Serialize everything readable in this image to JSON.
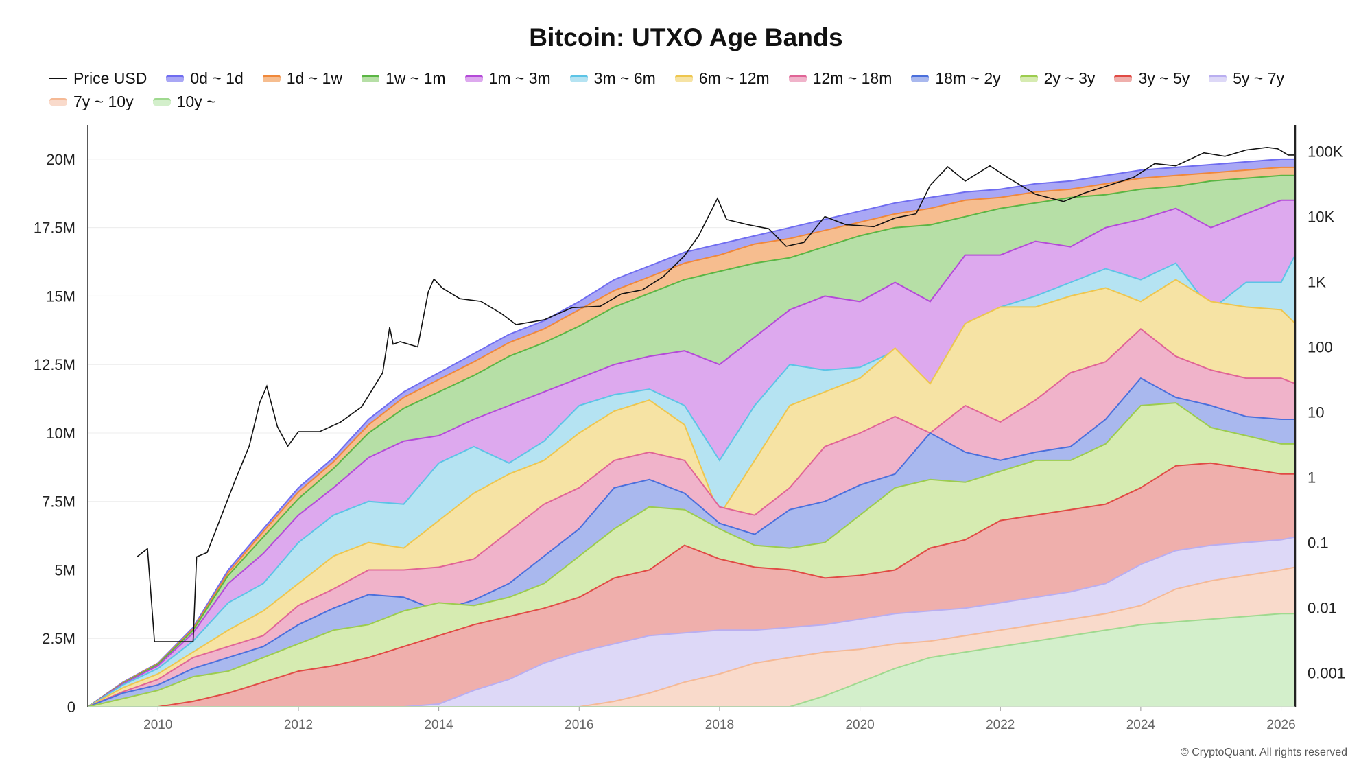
{
  "chart_data": {
    "type": "area",
    "title": "Bitcoin: UTXO Age Bands",
    "watermark": "CryptoQuant",
    "copyright": "© CryptoQuant. All rights reserved",
    "legend_position": "top",
    "grid": true,
    "y_left": {
      "ticks": [
        "0",
        "2.5M",
        "5M",
        "7.5M",
        "10M",
        "12.5M",
        "15M",
        "17.5M",
        "20M"
      ],
      "lim": [
        0,
        21000000
      ]
    },
    "y_right": {
      "scale": "log",
      "ticks": [
        "0.001",
        "0.01",
        "0.1",
        "1",
        "10",
        "100",
        "1K",
        "10K",
        "100K"
      ],
      "lim": [
        0.0003,
        200000
      ]
    },
    "x_ticks": [
      "2010",
      "2012",
      "2014",
      "2016",
      "2018",
      "2020",
      "2022",
      "2024",
      "2026"
    ],
    "x_lim": [
      2009.0,
      2026.2
    ],
    "price_label": "Price USD",
    "bands_legend": [
      {
        "name": "0d ~ 1d",
        "color": "#6f6cf0",
        "fill": "#a9a7f5"
      },
      {
        "name": "1d ~ 1w",
        "color": "#f0883a",
        "fill": "#f6bd8f"
      },
      {
        "name": "1w ~ 1m",
        "color": "#5ab544",
        "fill": "#b6dfa6"
      },
      {
        "name": "1m ~ 3m",
        "color": "#b44ad8",
        "fill": "#dda9ee"
      },
      {
        "name": "3m ~ 6m",
        "color": "#5cc4e6",
        "fill": "#b5e3f2"
      },
      {
        "name": "6m ~ 12m",
        "color": "#eec64e",
        "fill": "#f6e3a4"
      },
      {
        "name": "12m ~ 18m",
        "color": "#e06496",
        "fill": "#f0b3ca"
      },
      {
        "name": "18m ~ 2y",
        "color": "#4a6fdc",
        "fill": "#a9b8ee"
      },
      {
        "name": "2y ~ 3y",
        "color": "#9ccc4e",
        "fill": "#d6ebb1"
      },
      {
        "name": "3y ~ 5y",
        "color": "#e04a44",
        "fill": "#efafac"
      },
      {
        "name": "5y ~ 7y",
        "color": "#b9aef0",
        "fill": "#ddd8f7"
      },
      {
        "name": "7y ~ 10y",
        "color": "#f5b995",
        "fill": "#f9dacb"
      },
      {
        "name": "10y ~",
        "color": "#9fd98f",
        "fill": "#d3efcb"
      }
    ],
    "x": [
      2009.0,
      2009.5,
      2010.0,
      2010.5,
      2011.0,
      2011.5,
      2012.0,
      2012.5,
      2013.0,
      2013.5,
      2014.0,
      2014.5,
      2015.0,
      2015.5,
      2016.0,
      2016.5,
      2017.0,
      2017.5,
      2018.0,
      2018.5,
      2019.0,
      2019.5,
      2020.0,
      2020.5,
      2021.0,
      2021.5,
      2022.0,
      2022.5,
      2023.0,
      2023.5,
      2024.0,
      2024.5,
      2025.0,
      2025.5,
      2026.0,
      2026.2
    ],
    "cumulative_supply_bounds": {
      "top_0d_1d": [
        0,
        0.9,
        1.6,
        2.9,
        5.0,
        6.5,
        8.0,
        9.1,
        10.5,
        11.5,
        12.2,
        12.9,
        13.6,
        14.1,
        14.8,
        15.6,
        16.1,
        16.6,
        16.9,
        17.2,
        17.5,
        17.8,
        18.1,
        18.4,
        18.6,
        18.8,
        18.9,
        19.1,
        19.2,
        19.4,
        19.6,
        19.7,
        19.8,
        19.9,
        20.0,
        20.0
      ],
      "top_1d_1w": [
        0,
        0.88,
        1.58,
        2.85,
        4.9,
        6.4,
        7.85,
        8.95,
        10.3,
        11.3,
        11.95,
        12.6,
        13.3,
        13.8,
        14.5,
        15.2,
        15.7,
        16.2,
        16.5,
        16.9,
        17.1,
        17.4,
        17.7,
        18.0,
        18.2,
        18.5,
        18.6,
        18.8,
        18.9,
        19.1,
        19.3,
        19.4,
        19.5,
        19.6,
        19.7,
        19.7
      ],
      "top_1w_1m": [
        0,
        0.86,
        1.55,
        2.8,
        4.8,
        6.2,
        7.6,
        8.7,
        10.0,
        10.9,
        11.5,
        12.1,
        12.8,
        13.3,
        13.9,
        14.6,
        15.1,
        15.6,
        15.9,
        16.2,
        16.4,
        16.8,
        17.2,
        17.5,
        17.6,
        17.9,
        18.2,
        18.4,
        18.6,
        18.7,
        18.9,
        19.0,
        19.2,
        19.3,
        19.4,
        19.4
      ],
      "top_1m_3m": [
        0,
        0.84,
        1.5,
        2.7,
        4.5,
        5.6,
        7.0,
        8.0,
        9.1,
        9.7,
        9.9,
        10.5,
        11.0,
        11.5,
        12.0,
        12.5,
        12.8,
        13.0,
        12.5,
        13.5,
        14.5,
        15.0,
        14.8,
        15.5,
        14.8,
        16.5,
        16.5,
        17.0,
        16.8,
        17.5,
        17.8,
        18.2,
        17.5,
        18.0,
        18.5,
        18.5
      ],
      "top_3m_6m": [
        0,
        0.8,
        1.4,
        2.4,
        3.8,
        4.5,
        6.0,
        7.0,
        7.5,
        7.4,
        8.9,
        9.5,
        8.9,
        9.7,
        11.0,
        11.4,
        11.6,
        11.0,
        9.0,
        11.0,
        12.5,
        12.3,
        12.4,
        13.0,
        11.8,
        14.0,
        14.6,
        15.0,
        15.5,
        16.0,
        15.6,
        16.2,
        14.5,
        15.5,
        15.5,
        16.5
      ],
      "top_6m_12m": [
        0,
        0.7,
        1.2,
        2.0,
        2.8,
        3.5,
        4.5,
        5.5,
        6.0,
        5.8,
        6.8,
        7.8,
        8.5,
        9.0,
        10.0,
        10.8,
        11.2,
        10.3,
        7.0,
        9.0,
        11.0,
        11.5,
        12.0,
        13.1,
        11.8,
        14.0,
        14.6,
        14.6,
        15.0,
        15.3,
        14.8,
        15.6,
        14.8,
        14.6,
        14.5,
        14.0
      ],
      "top_12m_18m": [
        0,
        0.55,
        1.0,
        1.8,
        2.2,
        2.6,
        3.7,
        4.3,
        5.0,
        5.0,
        5.1,
        5.4,
        6.4,
        7.4,
        8.0,
        9.0,
        9.3,
        9.0,
        7.3,
        7.0,
        8.0,
        9.5,
        10.0,
        10.6,
        10.0,
        11.0,
        10.4,
        11.2,
        12.2,
        12.6,
        13.8,
        12.8,
        12.3,
        12.0,
        12.0,
        11.8
      ],
      "top_18m_2y": [
        0,
        0.5,
        0.8,
        1.4,
        1.8,
        2.2,
        3.0,
        3.6,
        4.1,
        4.0,
        3.5,
        3.9,
        4.5,
        5.5,
        6.5,
        8.0,
        8.3,
        7.8,
        6.7,
        6.3,
        7.2,
        7.5,
        8.1,
        8.5,
        10.0,
        9.3,
        9.0,
        9.3,
        9.5,
        10.5,
        12.0,
        11.3,
        11.0,
        10.6,
        10.5,
        10.5
      ],
      "top_2y_3y": [
        0,
        0.3,
        0.6,
        1.1,
        1.3,
        1.8,
        2.3,
        2.8,
        3.0,
        3.5,
        3.8,
        3.7,
        4.0,
        4.5,
        5.5,
        6.5,
        7.3,
        7.2,
        6.5,
        5.9,
        5.8,
        6.0,
        7.0,
        8.0,
        8.3,
        8.2,
        8.6,
        9.0,
        9.0,
        9.6,
        11.0,
        11.1,
        10.2,
        9.9,
        9.6,
        9.6
      ],
      "top_3y_5y": [
        0,
        0,
        0,
        0.2,
        0.5,
        0.9,
        1.3,
        1.5,
        1.8,
        2.2,
        2.6,
        3.0,
        3.3,
        3.6,
        4.0,
        4.7,
        5.0,
        5.9,
        5.4,
        5.1,
        5.0,
        4.7,
        4.8,
        5.0,
        5.8,
        6.1,
        6.8,
        7.0,
        7.2,
        7.4,
        8.0,
        8.8,
        8.9,
        8.7,
        8.5,
        8.5
      ],
      "top_5y_7y": [
        0,
        0,
        0,
        0,
        0,
        0,
        0,
        0,
        0,
        0,
        0.1,
        0.6,
        1.0,
        1.6,
        2.0,
        2.3,
        2.6,
        2.7,
        2.8,
        2.8,
        2.9,
        3.0,
        3.2,
        3.4,
        3.5,
        3.6,
        3.8,
        4.0,
        4.2,
        4.5,
        5.2,
        5.7,
        5.9,
        6.0,
        6.1,
        6.2
      ],
      "top_7y_10y": [
        0,
        0,
        0,
        0,
        0,
        0,
        0,
        0,
        0,
        0,
        0,
        0,
        0,
        0,
        0,
        0.2,
        0.5,
        0.9,
        1.2,
        1.6,
        1.8,
        2.0,
        2.1,
        2.3,
        2.4,
        2.6,
        2.8,
        3.0,
        3.2,
        3.4,
        3.7,
        4.3,
        4.6,
        4.8,
        5.0,
        5.1
      ],
      "top_10y": [
        0,
        0,
        0,
        0,
        0,
        0,
        0,
        0,
        0,
        0,
        0,
        0,
        0,
        0,
        0,
        0,
        0,
        0,
        0,
        0,
        0,
        0.4,
        0.9,
        1.4,
        1.8,
        2.0,
        2.2,
        2.4,
        2.6,
        2.8,
        3.0,
        3.1,
        3.2,
        3.3,
        3.4,
        3.4
      ]
    },
    "price_usd": {
      "x": [
        2009.7,
        2009.85,
        2009.95,
        2010.1,
        2010.3,
        2010.5,
        2010.55,
        2010.7,
        2010.9,
        2011.1,
        2011.3,
        2011.45,
        2011.55,
        2011.7,
        2011.85,
        2012.0,
        2012.3,
        2012.6,
        2012.9,
        2013.2,
        2013.3,
        2013.35,
        2013.45,
        2013.7,
        2013.85,
        2013.93,
        2014.05,
        2014.3,
        2014.6,
        2014.9,
        2015.1,
        2015.5,
        2015.9,
        2016.3,
        2016.6,
        2016.9,
        2017.2,
        2017.5,
        2017.7,
        2017.97,
        2018.1,
        2018.4,
        2018.7,
        2018.95,
        2019.2,
        2019.5,
        2019.8,
        2020.2,
        2020.5,
        2020.8,
        2021.0,
        2021.25,
        2021.5,
        2021.85,
        2022.1,
        2022.5,
        2022.9,
        2023.2,
        2023.5,
        2023.9,
        2024.2,
        2024.5,
        2024.9,
        2025.2,
        2025.5,
        2025.8,
        2025.95,
        2026.1,
        2026.2
      ],
      "y": [
        0.06,
        0.08,
        0.003,
        0.003,
        0.003,
        0.003,
        0.06,
        0.07,
        0.25,
        0.9,
        3,
        14,
        25,
        6,
        3,
        5,
        5,
        7,
        12,
        40,
        200,
        110,
        120,
        100,
        700,
        1100,
        800,
        550,
        500,
        320,
        220,
        260,
        400,
        420,
        650,
        750,
        1200,
        2500,
        5000,
        19000,
        9000,
        7500,
        6500,
        3500,
        4000,
        10000,
        7500,
        7000,
        9500,
        11000,
        30000,
        58000,
        35000,
        60000,
        40000,
        22000,
        17000,
        23000,
        29000,
        40000,
        65000,
        60000,
        95000,
        84000,
        105000,
        115000,
        110000,
        88000,
        88000
      ]
    }
  }
}
